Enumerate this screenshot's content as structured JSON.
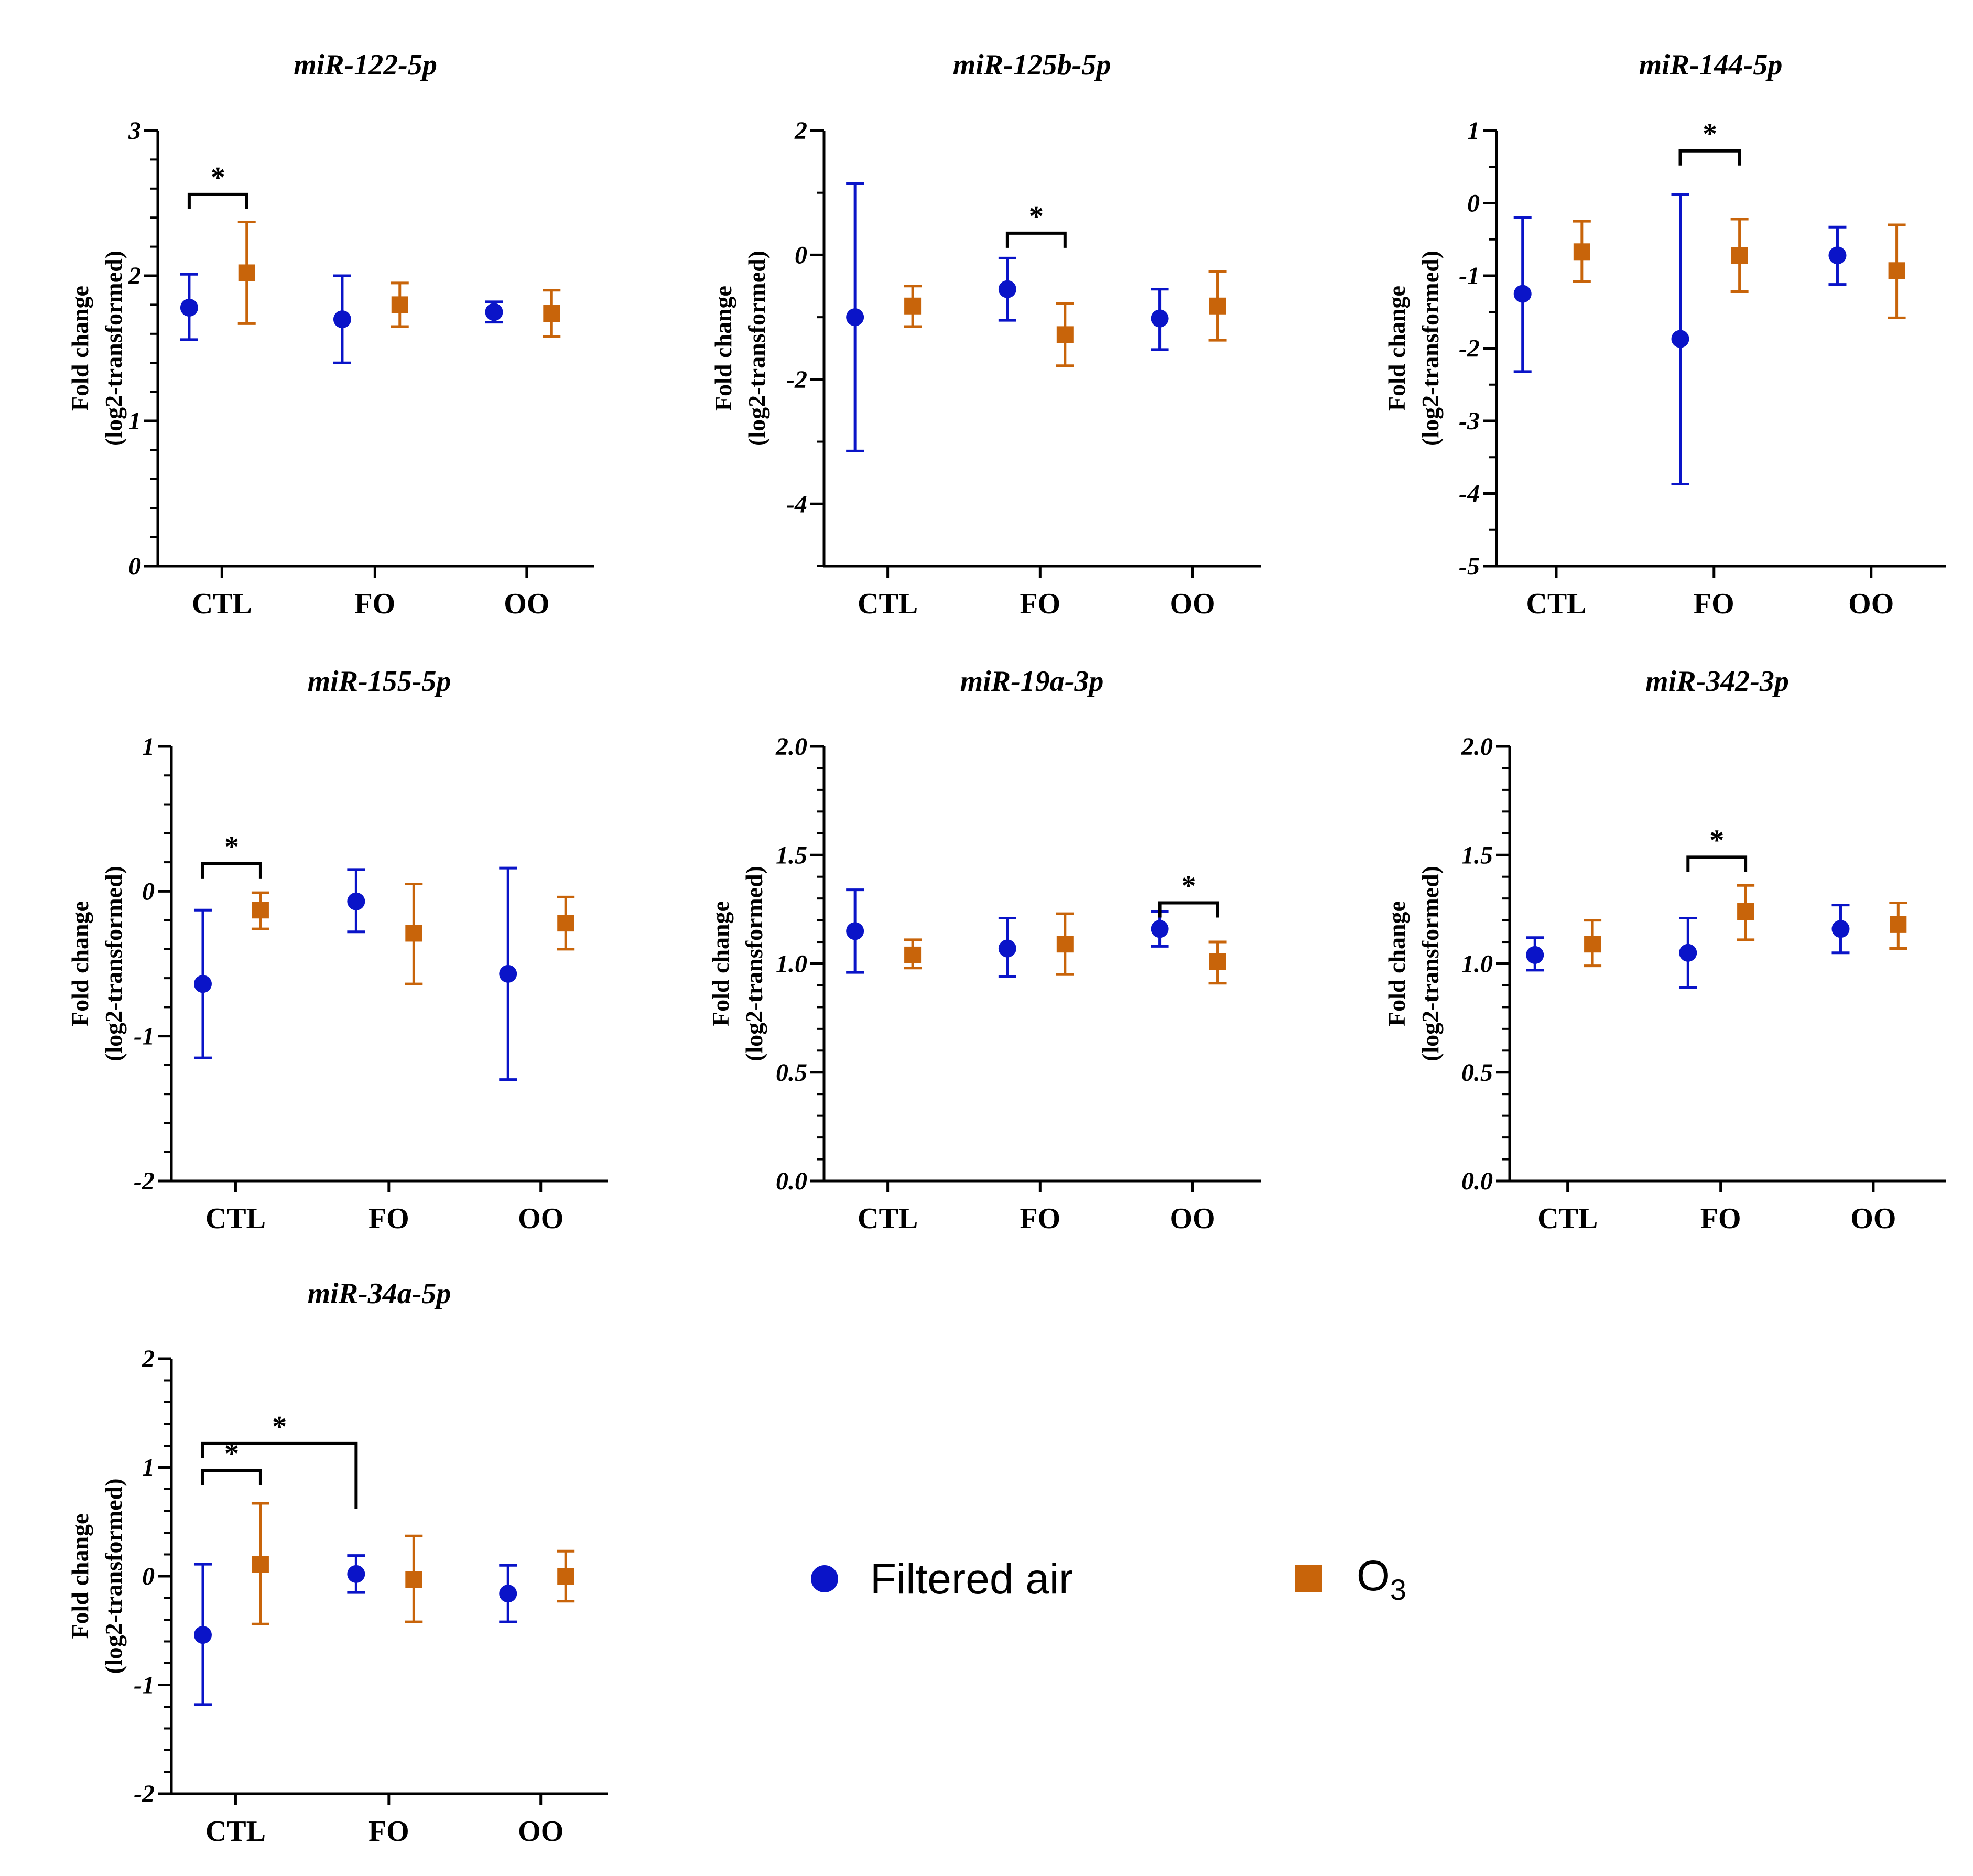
{
  "colors": {
    "filtered_air": "#0a14c8",
    "o3": "#c8640a",
    "axis": "#000000"
  },
  "legend": [
    {
      "key": "filtered_air",
      "label": "Filtered air",
      "marker": "circle",
      "color": "#0a14c8"
    },
    {
      "key": "o3",
      "label": "O",
      "subscript": "3",
      "marker": "square",
      "color": "#c8640a"
    }
  ],
  "chart_data": [
    {
      "type": "scatter",
      "title": "miR-122-5p",
      "ylabel": [
        "Fold change",
        "(log2-transformed)"
      ],
      "categories": [
        "CTL",
        "FO",
        "OO"
      ],
      "ylim": [
        0,
        3
      ],
      "major_ticks": [
        0,
        1,
        2,
        3
      ],
      "tick_labels": [
        "0",
        "1",
        "2",
        "3"
      ],
      "minor_per_major": 5,
      "series": [
        {
          "name": "Filtered air",
          "key": "filtered_air",
          "values": [
            1.78,
            1.7,
            1.75
          ],
          "err_low": [
            1.56,
            1.4,
            1.68
          ],
          "err_high": [
            2.01,
            2.0,
            1.82
          ]
        },
        {
          "name": "O3",
          "key": "o3",
          "values": [
            2.02,
            1.8,
            1.74
          ],
          "err_low": [
            1.67,
            1.65,
            1.58
          ],
          "err_high": [
            2.37,
            1.95,
            1.9
          ]
        }
      ],
      "significance": [
        {
          "label": "*",
          "from": [
            0,
            0
          ],
          "to": [
            0,
            1
          ],
          "y": 2.56
        }
      ]
    },
    {
      "type": "scatter",
      "title": "miR-125b-5p",
      "ylabel": [
        "Fold change",
        "(log2-transformed)"
      ],
      "categories": [
        "CTL",
        "FO",
        "OO"
      ],
      "ylim": [
        -5,
        2
      ],
      "major_ticks": [
        -4,
        -2,
        0,
        2
      ],
      "tick_labels": [
        "-4",
        "-2",
        "0",
        "2"
      ],
      "minor_per_major": 2,
      "series": [
        {
          "name": "Filtered air",
          "key": "filtered_air",
          "values": [
            -1.0,
            -0.55,
            -1.02
          ],
          "err_low": [
            -3.15,
            -1.05,
            -1.52
          ],
          "err_high": [
            1.15,
            -0.05,
            -0.55
          ]
        },
        {
          "name": "O3",
          "key": "o3",
          "values": [
            -0.82,
            -1.28,
            -0.82
          ],
          "err_low": [
            -1.15,
            -1.78,
            -1.37
          ],
          "err_high": [
            -0.5,
            -0.78,
            -0.27
          ]
        }
      ],
      "significance": [
        {
          "label": "*",
          "from": [
            1,
            0
          ],
          "to": [
            1,
            1
          ],
          "y": 0.35
        }
      ]
    },
    {
      "type": "scatter",
      "title": "miR-144-5p",
      "ylabel": [
        "Fold change",
        "(log2-transformed)"
      ],
      "categories": [
        "CTL",
        "FO",
        "OO"
      ],
      "ylim": [
        -5,
        1
      ],
      "major_ticks": [
        -5,
        -4,
        -3,
        -2,
        -1,
        0,
        1
      ],
      "tick_labels": [
        "-5",
        "-4",
        "-3",
        "-2",
        "-1",
        "0",
        "1"
      ],
      "minor_per_major": 2,
      "series": [
        {
          "name": "Filtered air",
          "key": "filtered_air",
          "values": [
            -1.25,
            -1.87,
            -0.72
          ],
          "err_low": [
            -2.32,
            -3.87,
            -1.12
          ],
          "err_high": [
            -0.2,
            0.12,
            -0.33
          ]
        },
        {
          "name": "O3",
          "key": "o3",
          "values": [
            -0.67,
            -0.72,
            -0.93
          ],
          "err_low": [
            -1.08,
            -1.22,
            -1.58
          ],
          "err_high": [
            -0.25,
            -0.22,
            -0.3
          ]
        }
      ],
      "significance": [
        {
          "label": "*",
          "from": [
            1,
            0
          ],
          "to": [
            1,
            1
          ],
          "y": 0.72
        }
      ]
    },
    {
      "type": "scatter",
      "title": "miR-155-5p",
      "ylabel": [
        "Fold change",
        "(log2-transformed)"
      ],
      "categories": [
        "CTL",
        "FO",
        "OO"
      ],
      "ylim": [
        -2,
        1
      ],
      "major_ticks": [
        -2,
        -1,
        0,
        1
      ],
      "tick_labels": [
        "-2",
        "-1",
        "0",
        "1"
      ],
      "minor_per_major": 5,
      "series": [
        {
          "name": "Filtered air",
          "key": "filtered_air",
          "values": [
            -0.64,
            -0.07,
            -0.57
          ],
          "err_low": [
            -1.15,
            -0.28,
            -1.3
          ],
          "err_high": [
            -0.13,
            0.15,
            0.16
          ]
        },
        {
          "name": "O3",
          "key": "o3",
          "values": [
            -0.13,
            -0.29,
            -0.22
          ],
          "err_low": [
            -0.26,
            -0.64,
            -0.4
          ],
          "err_high": [
            -0.01,
            0.05,
            -0.04
          ]
        }
      ],
      "significance": [
        {
          "label": "*",
          "from": [
            0,
            0
          ],
          "to": [
            0,
            1
          ],
          "y": 0.19
        }
      ]
    },
    {
      "type": "scatter",
      "title": "miR-19a-3p",
      "ylabel": [
        "Fold change",
        "(log2-transformed)"
      ],
      "categories": [
        "CTL",
        "FO",
        "OO"
      ],
      "ylim": [
        0,
        2
      ],
      "major_ticks": [
        0,
        0.5,
        1,
        1.5,
        2
      ],
      "tick_labels": [
        "0.0",
        "0.5",
        "1.0",
        "1.5",
        "2.0"
      ],
      "minor_per_major": 5,
      "series": [
        {
          "name": "Filtered air",
          "key": "filtered_air",
          "values": [
            1.15,
            1.07,
            1.16
          ],
          "err_low": [
            0.96,
            0.94,
            1.08
          ],
          "err_high": [
            1.34,
            1.21,
            1.24
          ]
        },
        {
          "name": "O3",
          "key": "o3",
          "values": [
            1.04,
            1.09,
            1.01
          ],
          "err_low": [
            0.98,
            0.95,
            0.91
          ],
          "err_high": [
            1.11,
            1.23,
            1.1
          ]
        }
      ],
      "significance": [
        {
          "label": "*",
          "from": [
            2,
            0
          ],
          "to": [
            2,
            1
          ],
          "y": 1.28
        }
      ]
    },
    {
      "type": "scatter",
      "title": "miR-342-3p",
      "ylabel": [
        "Fold change",
        "(log2-transformed)"
      ],
      "categories": [
        "CTL",
        "FO",
        "OO"
      ],
      "ylim": [
        0,
        2
      ],
      "major_ticks": [
        0,
        0.5,
        1,
        1.5,
        2
      ],
      "tick_labels": [
        "0.0",
        "0.5",
        "1.0",
        "1.5",
        "2.0"
      ],
      "minor_per_major": 5,
      "series": [
        {
          "name": "Filtered air",
          "key": "filtered_air",
          "values": [
            1.04,
            1.05,
            1.16
          ],
          "err_low": [
            0.97,
            0.89,
            1.05
          ],
          "err_high": [
            1.12,
            1.21,
            1.27
          ]
        },
        {
          "name": "O3",
          "key": "o3",
          "values": [
            1.09,
            1.24,
            1.18
          ],
          "err_low": [
            0.99,
            1.11,
            1.07
          ],
          "err_high": [
            1.2,
            1.36,
            1.28
          ]
        }
      ],
      "significance": [
        {
          "label": "*",
          "from": [
            1,
            0
          ],
          "to": [
            1,
            1
          ],
          "y": 1.49
        }
      ]
    },
    {
      "type": "scatter",
      "title": "miR-34a-5p",
      "ylabel": [
        "Fold change",
        "(log2-transformed)"
      ],
      "categories": [
        "CTL",
        "FO",
        "OO"
      ],
      "ylim": [
        -2,
        2
      ],
      "major_ticks": [
        -2,
        -1,
        0,
        1,
        2
      ],
      "tick_labels": [
        "-2",
        "-1",
        "0",
        "1",
        "2"
      ],
      "minor_per_major": 5,
      "series": [
        {
          "name": "Filtered air",
          "key": "filtered_air",
          "values": [
            -0.54,
            0.02,
            -0.16
          ],
          "err_low": [
            -1.18,
            -0.15,
            -0.42
          ],
          "err_high": [
            0.11,
            0.19,
            0.1
          ]
        },
        {
          "name": "O3",
          "key": "o3",
          "values": [
            0.11,
            -0.03,
            0.0
          ],
          "err_low": [
            -0.44,
            -0.42,
            -0.23
          ],
          "err_high": [
            0.67,
            0.37,
            0.23
          ]
        }
      ],
      "significance": [
        {
          "label": "*",
          "from": [
            0,
            0
          ],
          "to": [
            0,
            1
          ],
          "y": 0.97
        },
        {
          "label": "*",
          "from": [
            0,
            0
          ],
          "to": [
            1,
            0
          ],
          "y": 1.22,
          "right_drop_to": 0.62
        }
      ]
    }
  ]
}
